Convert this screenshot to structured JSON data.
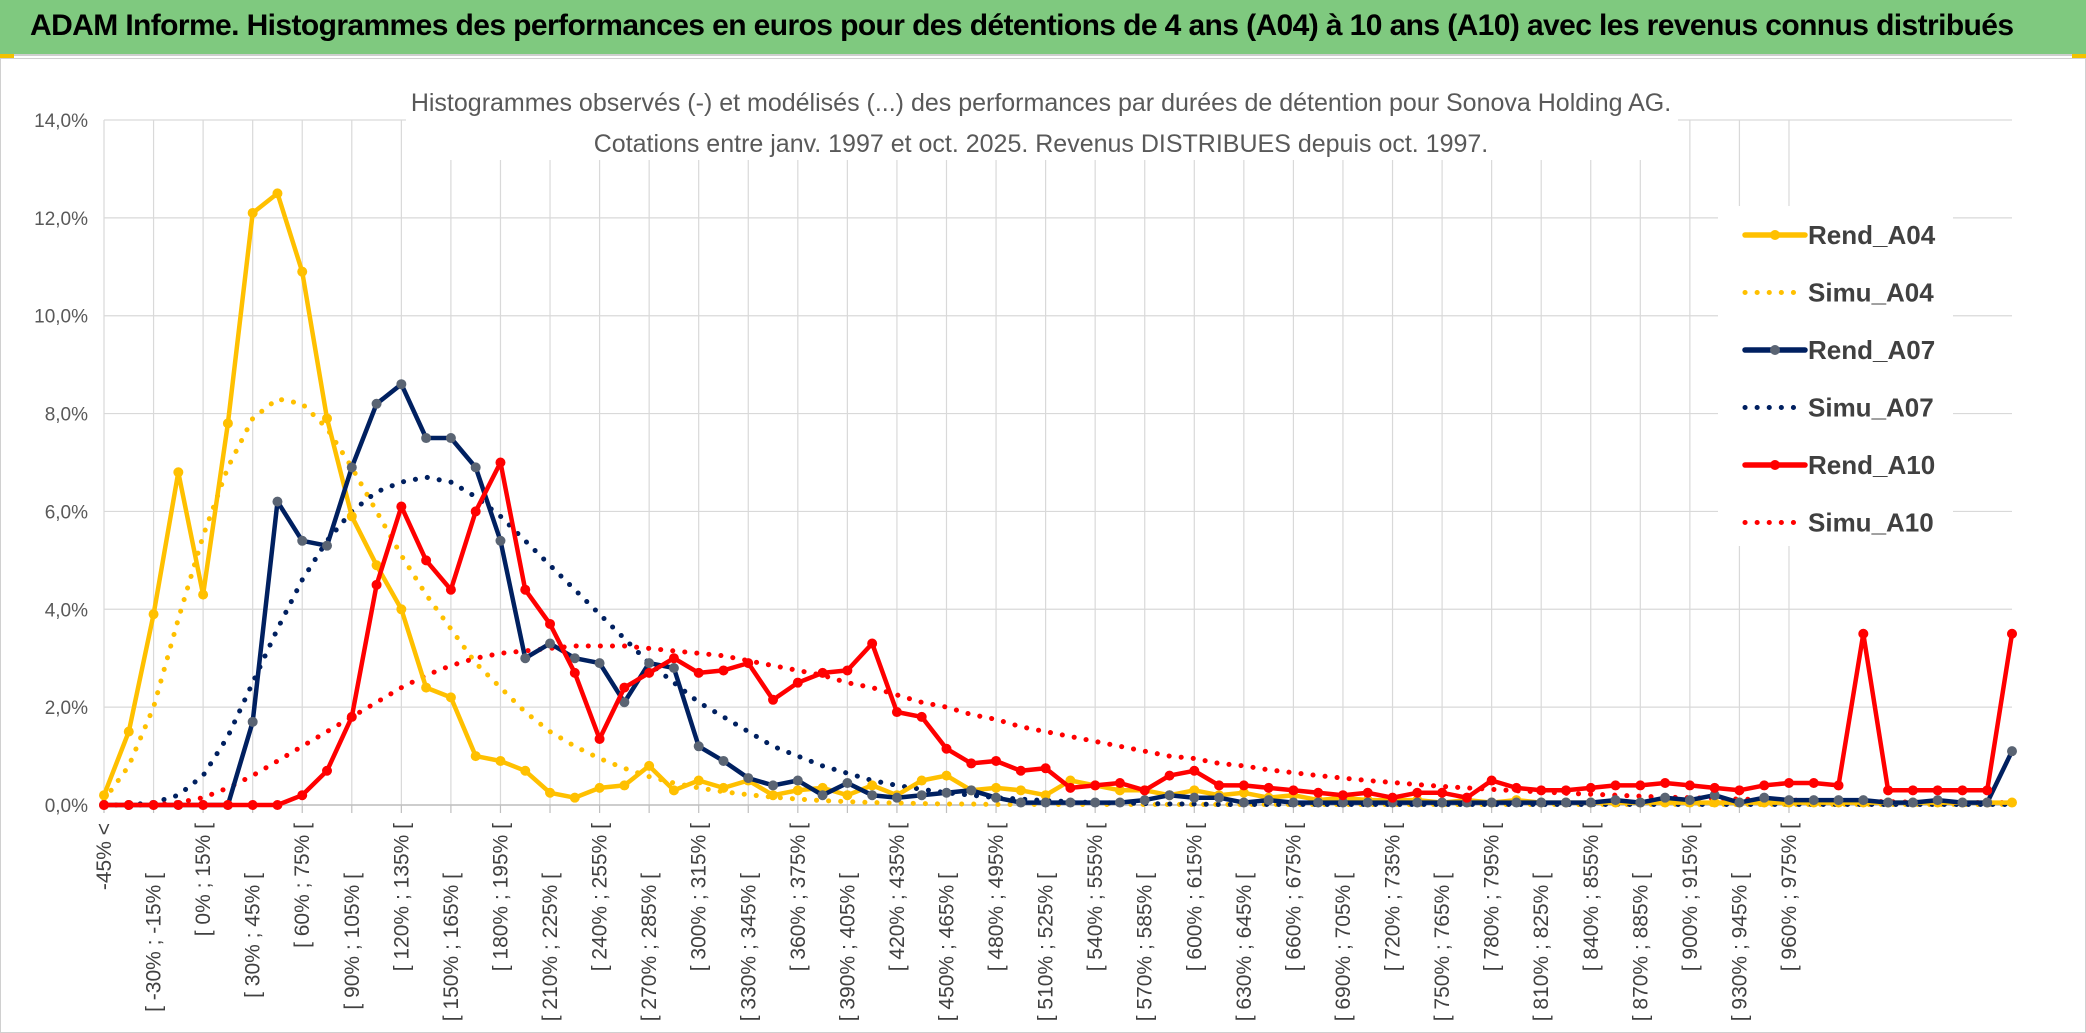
{
  "banner": {
    "title": "ADAM Informe. Histogrammes des performances en euros pour des détentions de 4 ans (A04) à 10 ans (A10) avec les revenus connus distribués"
  },
  "colors": {
    "banner": "#7fc97f",
    "A04": "#ffc000",
    "A07": "#002060",
    "A07_marker": "#5a6473",
    "A10": "#ff0000"
  },
  "chart_data": {
    "type": "line",
    "title": "Histogrammes observés (-) et modélisés (...) des performances par durées de détention pour Sonova Holding AG.",
    "subtitle": "Cotations entre janv. 1997 et oct. 2025. Revenus DISTRIBUES depuis oct. 1997.",
    "xlabel": "",
    "ylabel": "",
    "ylim": [
      0,
      14
    ],
    "y_ticks": [
      "0,0%",
      "2,0%",
      "4,0%",
      "6,0%",
      "8,0%",
      "10,0%",
      "12,0%",
      "14,0%"
    ],
    "grid": true,
    "legend_position": "right",
    "x_tick_labels": [
      "-45% <",
      "[ -30% ; -15% [",
      "[ 0% ; 15% [",
      "[ 30% ; 45% [",
      "[ 60% ; 75% [",
      "[ 90% ; 105% [",
      "[ 120% ; 135% [",
      "[ 150% ; 165% [",
      "[ 180% ; 195% [",
      "[ 210% ; 225% [",
      "[ 240% ; 255% [",
      "[ 270% ; 285% [",
      "[ 300% ; 315% [",
      "[ 330% ; 345% [",
      "[ 360% ; 375% [",
      "[ 390% ; 405% [",
      "[ 420% ; 435% [",
      "[ 450% ; 465% [",
      "[ 480% ; 495% [",
      "[ 510% ; 525% [",
      "[ 540% ; 555% [",
      "[ 570% ; 585% [",
      "[ 600% ; 615% [",
      "[ 630% ; 645% [",
      "[ 660% ; 675% [",
      "[ 690% ; 705% [",
      "[ 720% ; 735% [",
      "[ 750% ; 765% [",
      "[ 780% ; 795% [",
      "[ 810% ; 825% [",
      "[ 840% ; 855% [",
      "[ 870% ; 885% [",
      "[ 900% ; 915% [",
      "[ 930% ; 945% [",
      "[ 960% ; 975% ["
    ],
    "series": [
      {
        "name": "Rend_A04",
        "style": "solid",
        "color": "#ffc000",
        "values": [
          0.2,
          1.5,
          3.9,
          6.8,
          4.3,
          7.8,
          12.1,
          12.5,
          10.9,
          7.9,
          5.9,
          4.9,
          4.0,
          2.4,
          2.2,
          1.0,
          0.9,
          0.7,
          0.25,
          0.15,
          0.35,
          0.4,
          0.8,
          0.3,
          0.5,
          0.35,
          0.5,
          0.2,
          0.3,
          0.35,
          0.2,
          0.4,
          0.2,
          0.5,
          0.6,
          0.3,
          0.35,
          0.3,
          0.2,
          0.5,
          0.4,
          0.3,
          0.3,
          0.2,
          0.3,
          0.2,
          0.25,
          0.15,
          0.2,
          0.1,
          0.15,
          0.1,
          0.1,
          0.1,
          0.05,
          0.1,
          0.05,
          0.1,
          0.05,
          0.05,
          0.05,
          0.05,
          0.05,
          0.05,
          0.05,
          0.05,
          0.05,
          0.05,
          0.05,
          0.05,
          0.05,
          0.05,
          0.05,
          0.05,
          0.05,
          0.05,
          0.05,
          0.05
        ]
      },
      {
        "name": "Simu_A04",
        "style": "dotted",
        "color": "#ffc000",
        "values": [
          0.1,
          0.8,
          2.0,
          3.8,
          5.5,
          6.9,
          7.9,
          8.3,
          8.2,
          7.7,
          6.9,
          6.0,
          5.1,
          4.3,
          3.6,
          2.9,
          2.4,
          1.9,
          1.5,
          1.2,
          0.95,
          0.75,
          0.58,
          0.45,
          0.35,
          0.27,
          0.21,
          0.16,
          0.12,
          0.09,
          0.07,
          0.05,
          0.04,
          0.03,
          0.02,
          0.02,
          0.01,
          0.01,
          0.01,
          0.01,
          0.01,
          0.01,
          0.01,
          0.01,
          0.01,
          0.01,
          0.01,
          0.01,
          0.01,
          0.01,
          0.01,
          0.01,
          0.01,
          0.01,
          0.01,
          0.01,
          0.01,
          0.01,
          0.01,
          0.01,
          0.01,
          0.01,
          0.01,
          0.01,
          0.01,
          0.01,
          0.01,
          0.01,
          0.01,
          0.01,
          0.01,
          0.01,
          0.01,
          0.01,
          0.01,
          0.01,
          0.01,
          0.01
        ]
      },
      {
        "name": "Rend_A07",
        "style": "solid",
        "color": "#002060",
        "values": [
          0,
          0,
          0,
          0,
          0,
          0,
          1.7,
          6.2,
          5.4,
          5.3,
          6.9,
          8.2,
          8.6,
          7.5,
          7.5,
          6.9,
          5.4,
          3.0,
          3.3,
          3.0,
          2.9,
          2.1,
          2.9,
          2.8,
          1.2,
          0.9,
          0.55,
          0.4,
          0.5,
          0.2,
          0.45,
          0.2,
          0.15,
          0.2,
          0.25,
          0.3,
          0.15,
          0.05,
          0.05,
          0.05,
          0.05,
          0.05,
          0.1,
          0.2,
          0.15,
          0.15,
          0.05,
          0.1,
          0.05,
          0.05,
          0.05,
          0.05,
          0.05,
          0.05,
          0.05,
          0.05,
          0.05,
          0.05,
          0.05,
          0.05,
          0.05,
          0.1,
          0.05,
          0.15,
          0.1,
          0.2,
          0.05,
          0.15,
          0.1,
          0.1,
          0.1,
          0.1,
          0.05,
          0.05,
          0.1,
          0.05,
          0.05,
          1.1
        ]
      },
      {
        "name": "Simu_A07",
        "style": "dotted",
        "color": "#002060",
        "values": [
          0,
          0,
          0.05,
          0.2,
          0.6,
          1.4,
          2.5,
          3.6,
          4.6,
          5.4,
          6.0,
          6.4,
          6.6,
          6.7,
          6.6,
          6.3,
          5.9,
          5.4,
          4.9,
          4.4,
          3.9,
          3.4,
          2.9,
          2.5,
          2.1,
          1.8,
          1.5,
          1.2,
          1.0,
          0.8,
          0.65,
          0.5,
          0.4,
          0.32,
          0.25,
          0.2,
          0.15,
          0.12,
          0.09,
          0.07,
          0.05,
          0.04,
          0.03,
          0.02,
          0.02,
          0.01,
          0.01,
          0.01,
          0.01,
          0.01,
          0.01,
          0.01,
          0.01,
          0.01,
          0.01,
          0.01,
          0.01,
          0.01,
          0.01,
          0.01,
          0.01,
          0.01,
          0.01,
          0.01,
          0.01,
          0.01,
          0.01,
          0.01,
          0.01,
          0.01,
          0.01,
          0.01,
          0.01,
          0.01,
          0.01,
          0.01,
          0.01,
          0.01
        ]
      },
      {
        "name": "Rend_A10",
        "style": "solid",
        "color": "#ff0000",
        "values": [
          0,
          0,
          0,
          0,
          0,
          0,
          0,
          0,
          0.2,
          0.7,
          1.8,
          4.5,
          6.1,
          5.0,
          4.4,
          6.0,
          7.0,
          4.4,
          3.7,
          2.7,
          1.35,
          2.4,
          2.7,
          3.0,
          2.7,
          2.75,
          2.9,
          2.15,
          2.5,
          2.7,
          2.75,
          3.3,
          1.9,
          1.8,
          1.15,
          0.85,
          0.9,
          0.7,
          0.75,
          0.35,
          0.4,
          0.45,
          0.3,
          0.6,
          0.7,
          0.4,
          0.4,
          0.35,
          0.3,
          0.25,
          0.2,
          0.25,
          0.15,
          0.25,
          0.25,
          0.15,
          0.5,
          0.35,
          0.3,
          0.3,
          0.35,
          0.4,
          0.4,
          0.45,
          0.4,
          0.35,
          0.3,
          0.4,
          0.45,
          0.45,
          0.4,
          3.5,
          0.3,
          0.3,
          0.3,
          0.3,
          0.3,
          3.5
        ]
      },
      {
        "name": "Simu_A10",
        "style": "dotted",
        "color": "#ff0000",
        "values": [
          0,
          0,
          0,
          0.05,
          0.15,
          0.35,
          0.6,
          0.9,
          1.2,
          1.5,
          1.8,
          2.1,
          2.4,
          2.65,
          2.85,
          3.0,
          3.1,
          3.15,
          3.2,
          3.25,
          3.25,
          3.25,
          3.2,
          3.15,
          3.1,
          3.05,
          2.95,
          2.85,
          2.75,
          2.65,
          2.5,
          2.4,
          2.25,
          2.1,
          2.0,
          1.85,
          1.75,
          1.6,
          1.5,
          1.4,
          1.3,
          1.2,
          1.1,
          1.0,
          0.95,
          0.85,
          0.8,
          0.72,
          0.66,
          0.6,
          0.55,
          0.5,
          0.46,
          0.42,
          0.38,
          0.35,
          0.32,
          0.29,
          0.27,
          0.24,
          0.22,
          0.2,
          0.18,
          0.16,
          0.15,
          0.13,
          0.12,
          0.11,
          0.1,
          0.09,
          0.08,
          0.07,
          0.07,
          0.06,
          0.05,
          0.05,
          0.05,
          0.05
        ]
      }
    ]
  }
}
